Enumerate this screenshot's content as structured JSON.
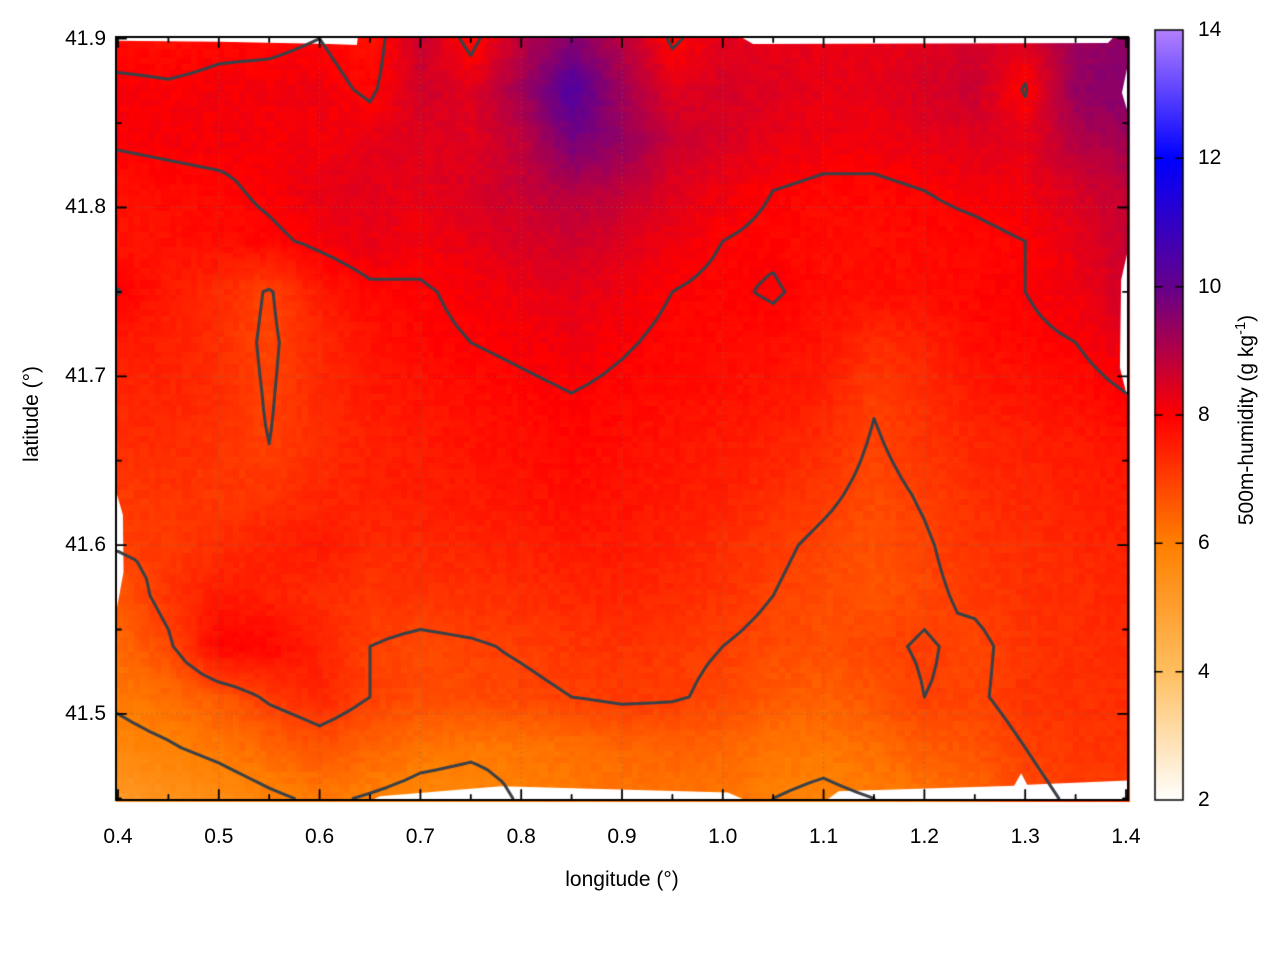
{
  "figure": {
    "x_axis": {
      "label": "longitude (°)",
      "tick_labels": [
        "0.4",
        "0.5",
        "0.6",
        "0.7",
        "0.8",
        "0.9",
        "1.0",
        "1.1",
        "1.2",
        "1.3",
        "1.4"
      ],
      "tick_values": [
        0.4,
        0.5,
        0.6,
        0.7,
        0.8,
        0.9,
        1.0,
        1.1,
        1.2,
        1.3,
        1.4
      ],
      "minor_tick_values": [
        0.45,
        0.55,
        0.65,
        0.75,
        0.85,
        0.95,
        1.05,
        1.15,
        1.25,
        1.35
      ]
    },
    "y_axis": {
      "label": "latitude (°)",
      "tick_labels": [
        "41.5",
        "41.6",
        "41.7",
        "41.8",
        "41.9"
      ],
      "tick_values": [
        41.5,
        41.6,
        41.7,
        41.8,
        41.9
      ],
      "minor_tick_values": [
        41.45,
        41.55,
        41.65,
        41.75,
        41.85
      ]
    },
    "colorbar": {
      "label_prefix": "500m-humidity (g kg",
      "label_sup": "-1",
      "label_suffix": ")",
      "tick_labels": [
        "2",
        "4",
        "6",
        "8",
        "10",
        "12",
        "14"
      ],
      "tick_values": [
        2,
        4,
        6,
        8,
        10,
        12,
        14
      ],
      "min": 2,
      "max": 14
    },
    "contour_color": "#3b4147",
    "gridline_color": "rgba(110,110,110,0.55)",
    "border_color": "#000000",
    "nodata_color": "#ffffff"
  },
  "chart_data": {
    "type": "heatmap",
    "title": "",
    "xlabel": "longitude (°)",
    "ylabel": "latitude (°)",
    "zlabel": "500m-humidity (g kg-1)",
    "xlim": [
      0.398,
      1.402
    ],
    "ylim": [
      41.449,
      41.901
    ],
    "zlim": [
      2,
      14
    ],
    "grid": true,
    "legend_position": "right-colorbar",
    "palette_stops": [
      {
        "v": 2,
        "color": "#ffffff"
      },
      {
        "v": 4,
        "color": "#ffbf60"
      },
      {
        "v": 6,
        "color": "#ff8000"
      },
      {
        "v": 8,
        "color": "#ff0000"
      },
      {
        "v": 10,
        "color": "#66008c"
      },
      {
        "v": 12,
        "color": "#0000ff"
      },
      {
        "v": 14,
        "color": "#b380ff"
      }
    ],
    "contour_levels": [
      6,
      7,
      8
    ],
    "grid_x_start": 0.4,
    "grid_x_step": 0.05,
    "grid_y_start": 41.9,
    "grid_y_step": -0.03,
    "values_rows_north_to_south": [
      [
        7.8,
        7.8,
        7.9,
        7.9,
        8.0,
        7.7,
        8.7,
        7.8,
        8.9,
        9.6,
        8.9,
        7.9,
        8.4,
        8.3,
        8.3,
        8.3,
        8.4,
        8.6,
        8.4,
        9.3,
        9.5
      ],
      [
        8.1,
        8.05,
        8.1,
        8.15,
        8.2,
        7.9,
        8.6,
        8.4,
        9.2,
        10.4,
        9.2,
        8.4,
        8.5,
        8.4,
        8.3,
        8.3,
        8.5,
        8.7,
        7.95,
        9.4,
        9.6
      ],
      [
        8.05,
        8.1,
        8.15,
        8.1,
        8.15,
        8.3,
        8.4,
        8.4,
        8.8,
        9.8,
        9.4,
        8.7,
        8.5,
        8.3,
        8.2,
        8.2,
        8.3,
        8.4,
        8.3,
        9.0,
        9.2
      ],
      [
        7.8,
        7.85,
        7.9,
        8.1,
        8.3,
        8.35,
        8.3,
        8.5,
        8.7,
        9.0,
        8.8,
        8.4,
        8.2,
        8.0,
        7.9,
        7.9,
        8.0,
        8.1,
        8.2,
        8.5,
        8.8
      ],
      [
        7.7,
        7.75,
        7.8,
        7.9,
        8.1,
        8.3,
        8.15,
        8.3,
        8.5,
        8.6,
        8.4,
        8.2,
        8.0,
        7.9,
        7.8,
        7.8,
        7.85,
        7.9,
        8.0,
        8.3,
        8.7
      ],
      [
        8.02,
        7.6,
        7.35,
        6.95,
        7.6,
        7.9,
        7.95,
        8.1,
        8.2,
        8.35,
        8.2,
        8.0,
        7.9,
        8.06,
        7.8,
        7.8,
        7.8,
        7.9,
        8.0,
        8.2,
        8.6
      ],
      [
        7.6,
        7.5,
        7.3,
        6.9,
        7.4,
        7.7,
        7.9,
        8.0,
        8.1,
        8.2,
        8.05,
        7.9,
        7.85,
        7.8,
        7.7,
        7.3,
        7.5,
        7.8,
        7.9,
        8.0,
        8.3
      ],
      [
        7.4,
        7.45,
        7.3,
        6.95,
        7.4,
        7.6,
        7.7,
        7.8,
        7.9,
        8.0,
        7.9,
        7.8,
        7.75,
        7.7,
        7.5,
        7.05,
        7.3,
        7.6,
        7.7,
        7.8,
        8.0
      ],
      [
        7.3,
        7.35,
        7.2,
        7.0,
        7.3,
        7.5,
        7.6,
        7.7,
        7.8,
        7.9,
        7.8,
        7.7,
        7.6,
        7.5,
        7.3,
        6.95,
        7.2,
        7.4,
        7.5,
        7.6,
        7.7
      ],
      [
        7.1,
        7.2,
        7.15,
        7.2,
        7.4,
        7.5,
        7.55,
        7.6,
        7.7,
        7.8,
        7.7,
        7.6,
        7.5,
        7.3,
        7.1,
        6.85,
        7.05,
        7.3,
        7.4,
        7.5,
        7.6
      ],
      [
        7.05,
        7.1,
        7.3,
        7.5,
        7.6,
        7.35,
        7.4,
        7.45,
        7.5,
        7.6,
        7.6,
        7.5,
        7.3,
        7.1,
        6.9,
        6.75,
        6.95,
        7.2,
        7.3,
        7.4,
        7.5
      ],
      [
        6.65,
        7.2,
        7.6,
        7.5,
        7.3,
        7.2,
        7.2,
        7.25,
        7.3,
        7.4,
        7.45,
        7.35,
        7.2,
        7.0,
        6.8,
        6.7,
        6.9,
        7.1,
        7.25,
        7.3,
        7.4
      ],
      [
        6.35,
        6.9,
        7.95,
        7.9,
        7.5,
        7.0,
        6.9,
        6.95,
        7.05,
        7.15,
        7.2,
        7.1,
        7.0,
        6.85,
        6.75,
        6.9,
        7.05,
        6.88,
        7.2,
        7.3,
        7.35
      ],
      [
        6.1,
        6.3,
        6.6,
        7.1,
        7.4,
        7.0,
        6.8,
        6.85,
        6.9,
        7.0,
        7.1,
        7.05,
        6.9,
        6.6,
        6.5,
        6.7,
        7.0,
        6.92,
        7.2,
        7.25,
        7.3
      ],
      [
        5.8,
        5.95,
        6.15,
        6.4,
        6.7,
        6.45,
        6.2,
        6.1,
        6.15,
        6.25,
        6.4,
        6.5,
        6.4,
        6.2,
        6.15,
        6.3,
        6.6,
        6.7,
        7.0,
        7.15,
        7.2
      ],
      [
        5.2,
        5.45,
        5.65,
        5.9,
        6.1,
        5.95,
        5.8,
        5.75,
        6.05,
        6.1,
        6.15,
        6.2,
        6.2,
        6.0,
        5.9,
        6.0,
        6.1,
        6.4,
        6.9,
        7.05,
        7.1
      ]
    ],
    "nodata_regions": [
      [
        [
          0.398,
          41.901
        ],
        [
          0.638,
          41.901
        ],
        [
          0.637,
          41.8962
        ],
        [
          0.61,
          41.8968
        ],
        [
          0.5,
          41.8982
        ],
        [
          0.398,
          41.8988
        ]
      ],
      [
        [
          1.018,
          41.901
        ],
        [
          1.388,
          41.901
        ],
        [
          1.382,
          41.8975
        ],
        [
          1.03,
          41.8968
        ]
      ],
      [
        [
          0.652,
          41.449
        ],
        [
          1.022,
          41.449
        ],
        [
          1.005,
          41.4535
        ],
        [
          0.78,
          41.4572
        ],
        [
          0.66,
          41.4512
        ]
      ],
      [
        [
          1.103,
          41.449
        ],
        [
          1.402,
          41.449
        ],
        [
          1.402,
          41.4605
        ],
        [
          1.302,
          41.458
        ],
        [
          1.296,
          41.4648
        ],
        [
          1.289,
          41.4575
        ],
        [
          1.115,
          41.4542
        ]
      ],
      [
        [
          0.398,
          41.632
        ],
        [
          0.4048,
          41.618
        ],
        [
          0.4055,
          41.584
        ],
        [
          0.398,
          41.56
        ]
      ],
      [
        [
          1.402,
          41.775
        ],
        [
          1.3952,
          41.757
        ],
        [
          1.394,
          41.705
        ],
        [
          1.402,
          41.686
        ]
      ],
      [
        [
          1.402,
          41.885
        ],
        [
          1.396,
          41.868
        ],
        [
          1.402,
          41.856
        ]
      ]
    ]
  }
}
